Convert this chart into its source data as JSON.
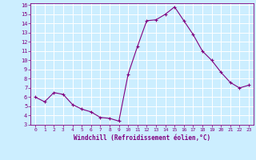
{
  "x": [
    0,
    1,
    2,
    3,
    4,
    5,
    6,
    7,
    8,
    9,
    10,
    11,
    12,
    13,
    14,
    15,
    16,
    17,
    18,
    19,
    20,
    21,
    22,
    23
  ],
  "y": [
    6.0,
    5.5,
    6.5,
    6.3,
    5.2,
    4.7,
    4.4,
    3.8,
    3.7,
    3.4,
    8.5,
    11.5,
    14.3,
    14.4,
    15.0,
    15.8,
    14.3,
    12.8,
    11.0,
    10.0,
    8.7,
    7.6,
    7.0,
    7.3
  ],
  "line_color": "#800080",
  "marker": "+",
  "marker_color": "#800080",
  "bg_color": "#cceeff",
  "grid_color": "#ffffff",
  "xlabel": "Windchill (Refroidissement éolien,°C)",
  "xlabel_color": "#800080",
  "tick_color": "#800080",
  "ylim": [
    3,
    16
  ],
  "xlim": [
    -0.5,
    23.5
  ],
  "yticks": [
    3,
    4,
    5,
    6,
    7,
    8,
    9,
    10,
    11,
    12,
    13,
    14,
    15,
    16
  ],
  "xticks": [
    0,
    1,
    2,
    3,
    4,
    5,
    6,
    7,
    8,
    9,
    10,
    11,
    12,
    13,
    14,
    15,
    16,
    17,
    18,
    19,
    20,
    21,
    22,
    23
  ]
}
